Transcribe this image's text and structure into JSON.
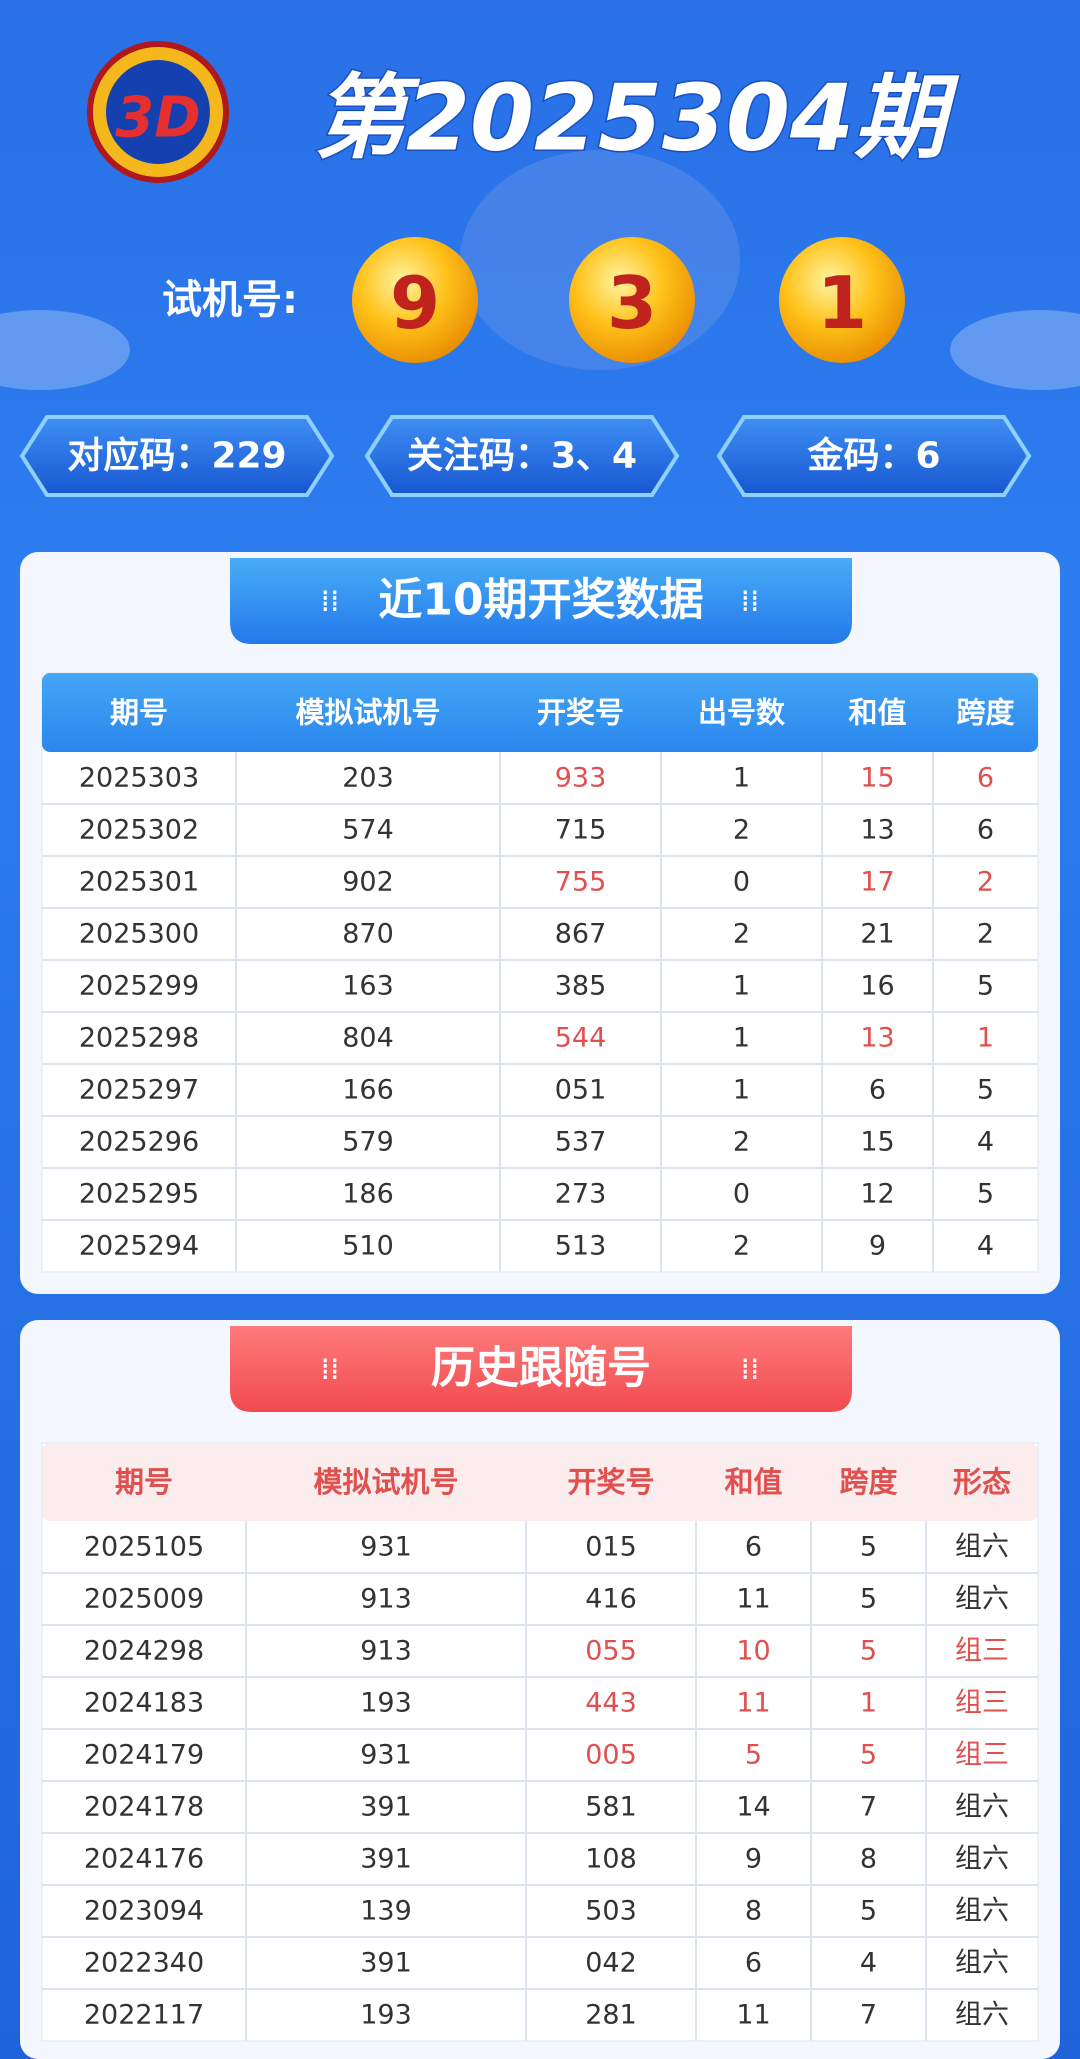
{
  "header": {
    "title": "第2025304期",
    "trial_label": "试机号:",
    "balls": [
      "9",
      "3",
      "1"
    ],
    "codes": [
      "对应码：229",
      "关注码：3、4",
      "金码：6"
    ]
  },
  "recent": {
    "title": "近10期开奖数据",
    "columns": [
      "期号",
      "模拟试机号",
      "开奖号",
      "出号数",
      "和值",
      "跨度"
    ],
    "rows": [
      {
        "cells": [
          "2025303",
          "203",
          "933",
          "1",
          "15",
          "6"
        ],
        "color": "#e0504f"
      },
      {
        "cells": [
          "2025302",
          "574",
          "715",
          "2",
          "13",
          "6"
        ],
        "color": "#333333"
      },
      {
        "cells": [
          "2025301",
          "902",
          "755",
          "0",
          "17",
          "2"
        ],
        "color": "#e0504f"
      },
      {
        "cells": [
          "2025300",
          "870",
          "867",
          "2",
          "21",
          "2"
        ],
        "color": "#333333"
      },
      {
        "cells": [
          "2025299",
          "163",
          "385",
          "1",
          "16",
          "5"
        ],
        "color": "#333333"
      },
      {
        "cells": [
          "2025298",
          "804",
          "544",
          "1",
          "13",
          "1"
        ],
        "color": "#e0504f"
      },
      {
        "cells": [
          "2025297",
          "166",
          "051",
          "1",
          "6",
          "5"
        ],
        "color": "#333333"
      },
      {
        "cells": [
          "2025296",
          "579",
          "537",
          "2",
          "15",
          "4"
        ],
        "color": "#333333"
      },
      {
        "cells": [
          "2025295",
          "186",
          "273",
          "0",
          "12",
          "5"
        ],
        "color": "#333333"
      },
      {
        "cells": [
          "2025294",
          "510",
          "513",
          "2",
          "9",
          "4"
        ],
        "color": "#333333"
      }
    ]
  },
  "history": {
    "title": "历史跟随号",
    "columns": [
      "期号",
      "模拟试机号",
      "开奖号",
      "和值",
      "跨度",
      "形态"
    ],
    "rows": [
      {
        "cells": [
          "2025105",
          "931",
          "015",
          "6",
          "5",
          "组六"
        ],
        "color": "#333333"
      },
      {
        "cells": [
          "2025009",
          "913",
          "416",
          "11",
          "5",
          "组六"
        ],
        "color": "#333333"
      },
      {
        "cells": [
          "2024298",
          "913",
          "055",
          "10",
          "5",
          "组三"
        ],
        "color": "#e0504f"
      },
      {
        "cells": [
          "2024183",
          "193",
          "443",
          "11",
          "1",
          "组三"
        ],
        "color": "#e0504f"
      },
      {
        "cells": [
          "2024179",
          "931",
          "005",
          "5",
          "5",
          "组三"
        ],
        "color": "#e0504f"
      },
      {
        "cells": [
          "2024178",
          "391",
          "581",
          "14",
          "7",
          "组六"
        ],
        "color": "#333333"
      },
      {
        "cells": [
          "2024176",
          "391",
          "108",
          "9",
          "8",
          "组六"
        ],
        "color": "#333333"
      },
      {
        "cells": [
          "2023094",
          "139",
          "503",
          "8",
          "5",
          "组六"
        ],
        "color": "#333333"
      },
      {
        "cells": [
          "2022340",
          "391",
          "042",
          "6",
          "4",
          "组六"
        ],
        "color": "#333333"
      },
      {
        "cells": [
          "2022117",
          "193",
          "281",
          "11",
          "7",
          "组六"
        ],
        "color": "#333333"
      }
    ]
  }
}
